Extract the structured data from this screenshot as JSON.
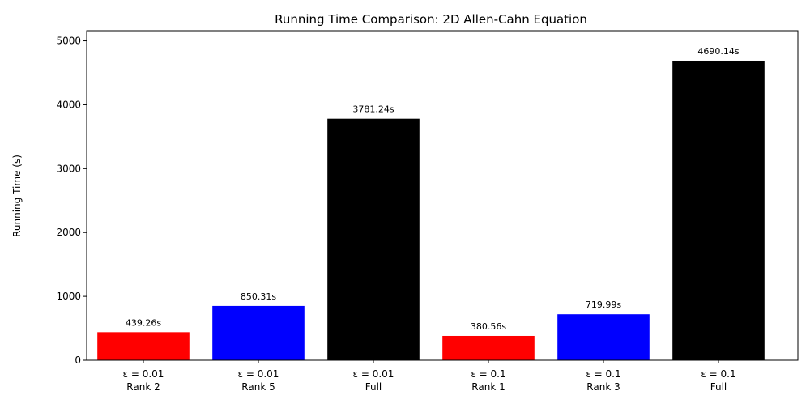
{
  "chart_data": {
    "type": "bar",
    "title": "Running Time Comparison: 2D Allen-Cahn Equation",
    "y_label": "Running Time (s)",
    "categories": [
      [
        "ε = 0.01",
        "Rank 2"
      ],
      [
        "ε = 0.01",
        "Rank 5"
      ],
      [
        "ε = 0.01",
        "Full"
      ],
      [
        "ε = 0.1",
        "Rank 1"
      ],
      [
        "ε = 0.1",
        "Rank 3"
      ],
      [
        "ε = 0.1",
        "Full"
      ]
    ],
    "values": [
      439.26,
      850.31,
      3781.24,
      380.56,
      719.99,
      4690.14
    ],
    "value_labels": [
      "439.26s",
      "850.31s",
      "3781.24s",
      "380.56s",
      "719.99s",
      "4690.14s"
    ],
    "colors": [
      "#ff0000",
      "#0000ff",
      "#000000",
      "#ff0000",
      "#0000ff",
      "#000000"
    ],
    "ylim": [
      0,
      5159
    ],
    "yticks": [
      0,
      1000,
      2000,
      3000,
      4000,
      5000
    ],
    "grid": false
  }
}
